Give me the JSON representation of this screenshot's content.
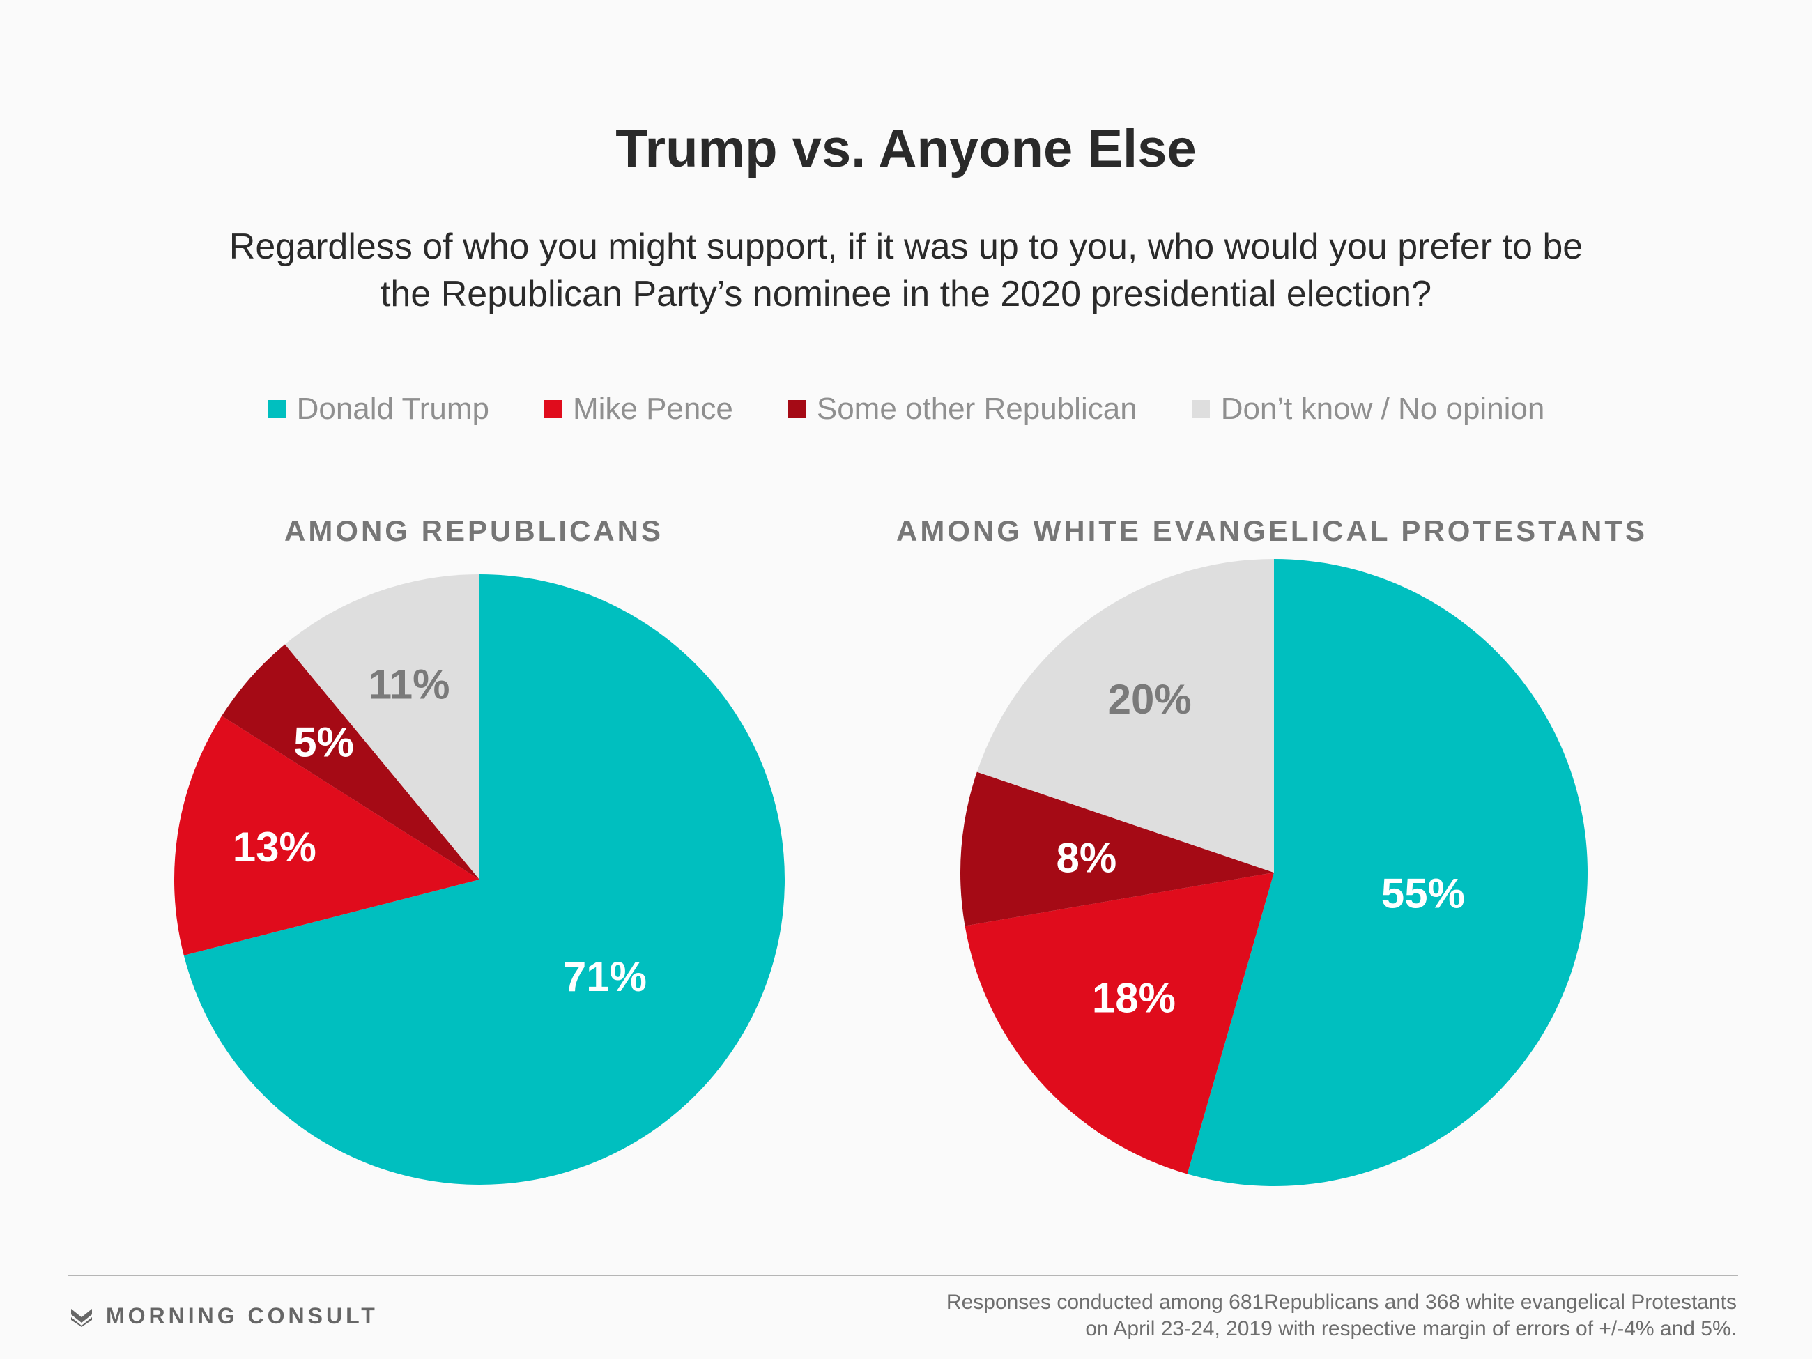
{
  "title": "Trump vs. Anyone Else",
  "subtitle_line1": "Regardless of who you might support, if it was up to you, who would you prefer to be",
  "subtitle_line2": "the Republican Party’s nominee in the 2020 presidential election?",
  "legend": [
    {
      "label": "Donald Trump",
      "color": "#00bfbf"
    },
    {
      "label": "Mike Pence",
      "color": "#e00c1c"
    },
    {
      "label": "Some other Republican",
      "color": "#a50a15"
    },
    {
      "label": "Don’t know / No opinion",
      "color": "#dedede"
    }
  ],
  "chart_data": [
    {
      "type": "pie",
      "title": "AMONG REPUBLICANS",
      "categories": [
        "Donald Trump",
        "Mike Pence",
        "Some other Republican",
        "Don’t know / No opinion"
      ],
      "values": [
        71,
        13,
        5,
        11
      ],
      "labels": [
        "71%",
        "13%",
        "5%",
        "11%"
      ],
      "colors": [
        "#00bfbf",
        "#e00c1c",
        "#a50a15",
        "#dedede"
      ],
      "label_colors": [
        "#ffffff",
        "#ffffff",
        "#ffffff",
        "#7a7a7a"
      ],
      "start": "12 o'clock",
      "direction": "clockwise"
    },
    {
      "type": "pie",
      "title": "AMONG WHITE EVANGELICAL PROTESTANTS",
      "categories": [
        "Donald Trump",
        "Mike Pence",
        "Some other Republican",
        "Don’t know / No opinion"
      ],
      "values": [
        55,
        18,
        8,
        20
      ],
      "labels": [
        "55%",
        "18%",
        "8%",
        "20%"
      ],
      "colors": [
        "#00bfbf",
        "#e00c1c",
        "#a50a15",
        "#dedede"
      ],
      "label_colors": [
        "#ffffff",
        "#ffffff",
        "#ffffff",
        "#7a7a7a"
      ],
      "start": "12 o'clock",
      "direction": "clockwise"
    }
  ],
  "footer": {
    "logo_text": "MORNING CONSULT",
    "source_line1": "Responses conducted among 681Republicans and 368 white evangelical Protestants",
    "source_line2": "on April 23-24, 2019 with respective margin of errors of +/-4% and 5%."
  }
}
